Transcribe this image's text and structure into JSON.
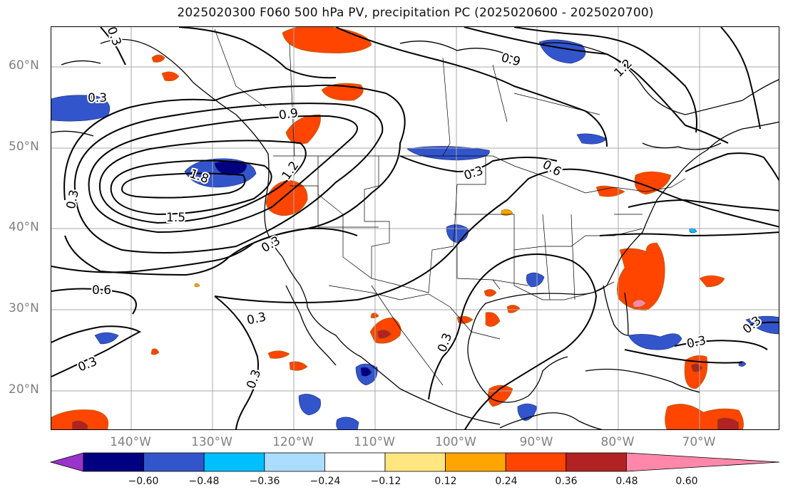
{
  "title": "2025020300 F060 500 hPa PV, precipitation PC (2025020600 - 2025020700)",
  "map": {
    "lat_labels": [
      "60°N",
      "50°N",
      "40°N",
      "30°N",
      "20°N"
    ],
    "lon_labels": [
      "140°W",
      "130°W",
      "120°W",
      "110°W",
      "100°W",
      "90°W",
      "80°W",
      "70°W"
    ],
    "contour_labels": [
      "0.3",
      "0.3",
      "0.3",
      "0.3",
      "0.3",
      "0.3",
      "0.3",
      "0.3",
      "0.3",
      "0.3",
      "0.3",
      "0.6",
      "0.6",
      "0.9",
      "0.9",
      "1.2",
      "1.2",
      "1.5",
      "1.8"
    ]
  },
  "colorbar": {
    "ticks": [
      "−0.60",
      "−0.48",
      "−0.36",
      "−0.24",
      "−0.12",
      "0.12",
      "0.24",
      "0.36",
      "0.48",
      "0.60"
    ],
    "colors": [
      "#9933cc",
      "#000080",
      "#3355cc",
      "#00bfff",
      "#aaddff",
      "#ffffff",
      "#ffe680",
      "#ffa500",
      "#ff4500",
      "#b22222",
      "#ff88aa"
    ]
  }
}
